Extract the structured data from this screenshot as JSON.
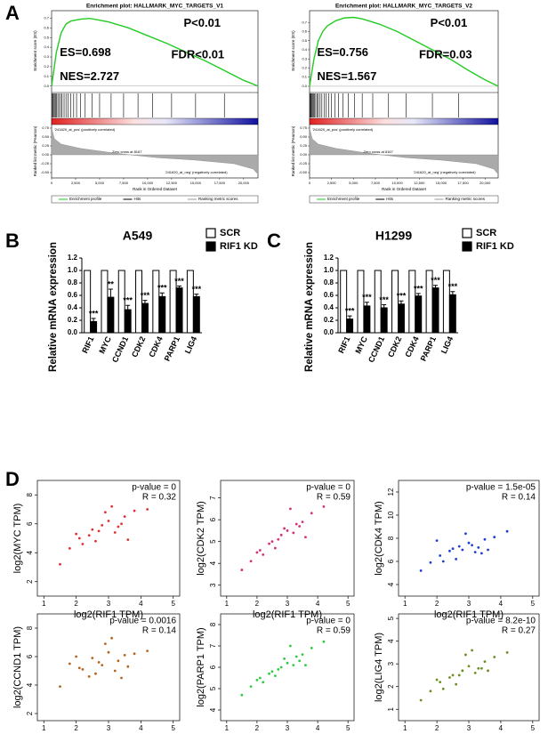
{
  "panels": [
    "A",
    "B",
    "C",
    "D"
  ],
  "chart_data": [
    {
      "type": "gsea",
      "title": "Enrichment plot: HALLMARK_MYC_TARGETS_V1",
      "ylabel": "Enrichment score (ES)",
      "metric_ylabel": "Ranked list metric (Pearson)",
      "xlabel": "Rank in Ordered Dataset",
      "annotations": [
        "P<0.01",
        "FDR<0.01",
        "ES=0.698",
        "NES=2.727"
      ],
      "x": [
        0,
        500,
        1000,
        1500,
        2000,
        3000,
        4000,
        5000,
        6000,
        8000,
        10000,
        12000,
        14000,
        16000,
        18000,
        20000,
        21500
      ],
      "values": [
        0,
        0.35,
        0.55,
        0.64,
        0.67,
        0.69,
        0.698,
        0.68,
        0.66,
        0.6,
        0.52,
        0.44,
        0.35,
        0.26,
        0.16,
        0.06,
        0
      ],
      "color": "#22cc22",
      "ylim": [
        -0.03,
        0.75
      ],
      "yticks": [
        {
          "value": 0,
          "label": "0.0"
        },
        0.1,
        0.2,
        0.3,
        0.4,
        0.5,
        0.6,
        0.7
      ],
      "xlim": [
        0,
        21500
      ],
      "xticks": [
        0,
        {
          "value": 2500,
          "label": "2,500"
        },
        {
          "value": 5000,
          "label": "5,000"
        },
        {
          "value": 7500,
          "label": "7,500"
        },
        {
          "value": 10000,
          "label": "10,000"
        },
        {
          "value": 12500,
          "label": "12,500"
        },
        {
          "value": 15000,
          "label": "15,000"
        },
        {
          "value": 17500,
          "label": "17,500"
        },
        {
          "value": 20000,
          "label": "20,000"
        }
      ],
      "hits": [
        50,
        120,
        200,
        300,
        400,
        520,
        650,
        800,
        950,
        1100,
        1300,
        1500,
        1700,
        2000,
        2300,
        2600,
        3000,
        3500,
        4200,
        5000,
        6200,
        7500,
        9000,
        10500,
        12500,
        15000,
        18000
      ],
      "metric_x": [
        0,
        300,
        1000,
        3000,
        6000,
        8167,
        11000,
        15000,
        19000,
        21000,
        21500
      ],
      "metric_values": [
        0.75,
        0.45,
        0.3,
        0.18,
        0.07,
        0,
        -0.08,
        -0.15,
        -0.25,
        -0.4,
        -0.55
      ],
      "metric_ylim": [
        -0.6,
        0.8
      ],
      "metric_yticks": [
        0.75,
        {
          "value": 0.5,
          "label": "0.50"
        },
        {
          "value": 0.25,
          "label": "0.25"
        },
        {
          "value": 0,
          "label": "0.00"
        },
        -0.25,
        {
          "value": -0.5,
          "label": "-0.50"
        }
      ],
      "metric_labels": [
        "'241620_at_pos' (positively correlated)",
        "Zero cross at 8167",
        "'241620_at_neg' (negatively correlated)"
      ],
      "legend": [
        "Enrichment profile",
        "Hits",
        "Ranking metric scores"
      ]
    },
    {
      "type": "gsea",
      "title": "Enrichment plot: HALLMARK_MYC_TARGETS_V2",
      "ylabel": "Enrichment score (ES)",
      "metric_ylabel": "Ranked list metric (Pearson)",
      "xlabel": "Rank in Ordered Dataset",
      "annotations": [
        "P<0.01",
        "FDR=0.03",
        "ES=0.756",
        "NES=1.567"
      ],
      "x": [
        0,
        500,
        1000,
        1500,
        2000,
        3000,
        4000,
        5000,
        6000,
        8000,
        10000,
        12000,
        14000,
        16000,
        18000,
        20000,
        21500
      ],
      "values": [
        0,
        0.3,
        0.5,
        0.6,
        0.66,
        0.72,
        0.75,
        0.756,
        0.74,
        0.68,
        0.6,
        0.5,
        0.4,
        0.3,
        0.18,
        0.07,
        0
      ],
      "color": "#22cc22",
      "ylim": [
        -0.03,
        0.8
      ],
      "yticks": [
        {
          "value": 0,
          "label": "0.0"
        },
        0.1,
        0.2,
        0.3,
        0.4,
        0.5,
        0.6,
        0.7
      ],
      "xlim": [
        0,
        21500
      ],
      "xticks": [
        0,
        {
          "value": 2500,
          "label": "2,500"
        },
        {
          "value": 5000,
          "label": "5,000"
        },
        {
          "value": 7500,
          "label": "7,500"
        },
        {
          "value": 10000,
          "label": "10,000"
        },
        {
          "value": 12500,
          "label": "12,500"
        },
        {
          "value": 15000,
          "label": "15,000"
        },
        {
          "value": 17500,
          "label": "17,500"
        },
        {
          "value": 20000,
          "label": "20,000"
        }
      ],
      "hits": [
        40,
        100,
        180,
        260,
        350,
        450,
        560,
        700,
        850,
        1000,
        1200,
        1400,
        1650,
        1900,
        2200,
        2500,
        2900,
        3300,
        3800,
        4400,
        5100,
        6000,
        7200,
        9000,
        11000,
        14000,
        17000
      ],
      "metric_x": [
        0,
        300,
        1000,
        3000,
        6000,
        8167,
        11000,
        15000,
        19000,
        21000,
        21500
      ],
      "metric_values": [
        0.75,
        0.45,
        0.3,
        0.18,
        0.07,
        0,
        -0.08,
        -0.15,
        -0.25,
        -0.4,
        -0.55
      ],
      "metric_ylim": [
        -0.6,
        0.8
      ],
      "metric_yticks": [
        0.75,
        {
          "value": 0.5,
          "label": "0.50"
        },
        {
          "value": 0.25,
          "label": "0.25"
        },
        {
          "value": 0,
          "label": "0.00"
        },
        -0.25,
        {
          "value": -0.5,
          "label": "-0.50"
        }
      ],
      "metric_labels": [
        "'241620_at_pos' (positively correlated)",
        "Zero cross at 8167",
        "'241620_at_neg' (negatively correlated)"
      ],
      "legend": [
        "Enrichment profile",
        "Hits",
        "Ranking metric scores"
      ]
    },
    {
      "type": "bar",
      "title": "A549",
      "ylabel": "Relative mRNA expression",
      "categories": [
        "RIF1",
        "MYC",
        "CCND1",
        "CDK2",
        "CDK4",
        "PARP1",
        "LIG4"
      ],
      "series": [
        {
          "name": "SCR",
          "color": "#ffffff",
          "values": [
            1,
            1,
            1,
            1,
            1,
            1,
            1
          ]
        },
        {
          "name": "RIF1 KD",
          "color": "#000000",
          "values": [
            0.18,
            0.57,
            0.37,
            0.47,
            0.58,
            0.72,
            0.58
          ],
          "errors": [
            0.05,
            0.13,
            0.07,
            0.05,
            0.06,
            0.03,
            0.04
          ],
          "significance": [
            "***",
            "**",
            "***",
            "***",
            "***",
            "***",
            "***"
          ]
        }
      ],
      "ylim": [
        0,
        1.2
      ],
      "yticks": [
        {
          "value": 0,
          "label": "0.0"
        },
        0.2,
        0.4,
        0.6,
        0.8,
        {
          "value": 1,
          "label": "1.0"
        },
        1.2
      ]
    },
    {
      "type": "bar",
      "title": "H1299",
      "ylabel": "Relative mRNA expression",
      "categories": [
        "RIF1",
        "MYC",
        "CCND1",
        "CDK2",
        "CDK4",
        "PARP1",
        "LIG4"
      ],
      "series": [
        {
          "name": "SCR",
          "color": "#ffffff",
          "values": [
            1,
            1,
            1,
            1,
            1,
            1,
            1
          ]
        },
        {
          "name": "RIF1 KD",
          "color": "#000000",
          "values": [
            0.22,
            0.43,
            0.4,
            0.46,
            0.59,
            0.72,
            0.61
          ],
          "errors": [
            0.05,
            0.06,
            0.05,
            0.05,
            0.04,
            0.04,
            0.05
          ],
          "significance": [
            "***",
            "***",
            "***",
            "***",
            "***",
            "***",
            "***"
          ]
        }
      ],
      "ylim": [
        0,
        1.2
      ],
      "yticks": [
        {
          "value": 0,
          "label": "0.0"
        },
        0.2,
        0.4,
        0.6,
        0.8,
        {
          "value": 1,
          "label": "1.0"
        },
        1.2
      ]
    },
    {
      "type": "scatter",
      "xlabel": "log2(RIF1 TPM)",
      "ylabel": "log2(MYC TPM)",
      "annotations": [
        "p-value = 0",
        "R = 0.32"
      ],
      "color": "#e03030",
      "x": [
        2.1,
        2.5,
        2.8,
        3.0,
        3.2,
        2.6,
        3.5,
        1.8,
        2.9,
        3.3,
        2.4,
        3.8,
        2.2,
        3.1,
        2.7,
        4.2,
        1.5,
        3.4,
        2.0,
        3.6
      ],
      "values": [
        5.0,
        5.6,
        5.9,
        6.2,
        5.4,
        4.8,
        6.5,
        4.3,
        6.8,
        5.8,
        5.2,
        6.9,
        4.6,
        7.2,
        5.5,
        7.0,
        3.2,
        6.0,
        5.3,
        4.9
      ],
      "xlim": [
        0.8,
        5.2
      ],
      "xticks": [
        1,
        2,
        3,
        4,
        5
      ],
      "ylim": [
        1,
        9
      ],
      "yticks": [
        2,
        4,
        6,
        8
      ]
    },
    {
      "type": "scatter",
      "xlabel": "log2(RIF1 TPM)",
      "ylabel": "log2(CDK2 TPM)",
      "annotations": [
        "p-value = 0",
        "R = 0.59"
      ],
      "color": "#d6307a",
      "x": [
        2.1,
        2.5,
        2.8,
        3.0,
        3.2,
        2.6,
        3.5,
        1.8,
        2.9,
        3.3,
        2.4,
        3.8,
        2.2,
        3.1,
        2.7,
        4.2,
        1.5,
        3.4,
        2.0,
        3.6
      ],
      "values": [
        4.6,
        5.0,
        5.3,
        5.5,
        5.4,
        4.7,
        5.9,
        4.1,
        5.6,
        5.8,
        4.9,
        6.3,
        4.4,
        6.5,
        5.1,
        6.6,
        3.7,
        5.7,
        4.5,
        5.2
      ],
      "xlim": [
        0.8,
        5.2
      ],
      "xticks": [
        1,
        2,
        3,
        4,
        5
      ],
      "ylim": [
        2.5,
        7.8
      ],
      "yticks": [
        3,
        4,
        5,
        6,
        7
      ]
    },
    {
      "type": "scatter",
      "xlabel": "log2(RIF1 TPM)",
      "ylabel": "log2(CDK4 TPM)",
      "annotations": [
        "p-value = 1.5e-05",
        "R = 0.14"
      ],
      "color": "#1f3fd1",
      "x": [
        2.1,
        2.5,
        2.8,
        3.0,
        3.2,
        2.6,
        3.5,
        1.8,
        2.9,
        3.3,
        2.4,
        3.8,
        2.2,
        3.1,
        2.7,
        4.2,
        1.5,
        3.4,
        2.0,
        3.6
      ],
      "values": [
        6.5,
        7.1,
        7.0,
        7.6,
        6.8,
        6.2,
        7.9,
        5.9,
        8.4,
        7.2,
        6.9,
        8.1,
        6.0,
        7.4,
        7.3,
        8.6,
        5.2,
        6.7,
        7.8,
        7.0
      ],
      "xlim": [
        0.8,
        5.2
      ],
      "xticks": [
        1,
        2,
        3,
        4,
        5
      ],
      "ylim": [
        3,
        13
      ],
      "yticks": [
        4,
        6,
        8,
        10,
        12
      ]
    },
    {
      "type": "scatter",
      "xlabel": "log2(RIF1 TPM)",
      "ylabel": "log2(CCND1 TPM)",
      "annotations": [
        "p-value = 0.0016",
        "R = 0.14"
      ],
      "color": "#b5651d",
      "x": [
        2.1,
        2.5,
        2.8,
        3.0,
        3.2,
        2.6,
        3.5,
        1.8,
        2.9,
        3.3,
        2.4,
        3.8,
        2.2,
        3.1,
        2.7,
        4.2,
        1.5,
        3.4,
        2.0,
        3.6
      ],
      "values": [
        5.2,
        5.9,
        5.4,
        6.3,
        5.0,
        4.8,
        6.1,
        5.5,
        6.9,
        5.7,
        4.6,
        6.2,
        5.1,
        7.3,
        5.6,
        6.4,
        3.9,
        4.5,
        6.0,
        5.3
      ],
      "xlim": [
        0.8,
        5.2
      ],
      "xticks": [
        1,
        2,
        3,
        4,
        5
      ],
      "ylim": [
        1.5,
        9
      ],
      "yticks": [
        2,
        4,
        6,
        8
      ]
    },
    {
      "type": "scatter",
      "xlabel": "log2(RIF1 TPM)",
      "ylabel": "log2(PARP1 TPM)",
      "annotations": [
        "p-value = 0",
        "R = 0.59"
      ],
      "color": "#2ecc40",
      "x": [
        2.1,
        2.5,
        2.8,
        3.0,
        3.2,
        2.6,
        3.5,
        1.8,
        2.9,
        3.3,
        2.4,
        3.8,
        2.2,
        3.1,
        2.7,
        4.2,
        1.5,
        3.4,
        2.0,
        3.6
      ],
      "values": [
        5.5,
        5.8,
        6.0,
        6.2,
        6.1,
        5.6,
        6.6,
        5.1,
        6.4,
        6.5,
        5.7,
        6.9,
        5.3,
        7.0,
        5.9,
        7.2,
        4.7,
        6.3,
        5.4,
        6.1
      ],
      "xlim": [
        0.8,
        5.2
      ],
      "xticks": [
        1,
        2,
        3,
        4,
        5
      ],
      "ylim": [
        3.5,
        8.5
      ],
      "yticks": [
        4,
        5,
        6,
        7,
        8
      ]
    },
    {
      "type": "scatter",
      "xlabel": "log2(RIF1 TPM)",
      "ylabel": "log2(LIG4 TPM)",
      "annotations": [
        "p-value = 8.2e-10",
        "R = 0.27"
      ],
      "color": "#6b8e23",
      "x": [
        2.1,
        2.5,
        2.8,
        3.0,
        3.2,
        2.6,
        3.5,
        1.8,
        2.9,
        3.3,
        2.4,
        3.8,
        2.2,
        3.1,
        2.7,
        4.2,
        1.5,
        3.4,
        2.0,
        3.6
      ],
      "values": [
        2.2,
        2.5,
        2.7,
        2.9,
        2.6,
        2.1,
        3.1,
        1.8,
        3.4,
        2.8,
        2.4,
        3.3,
        1.9,
        3.6,
        2.5,
        3.5,
        1.4,
        2.8,
        2.3,
        2.7
      ],
      "xlim": [
        0.8,
        5.2
      ],
      "xticks": [
        1,
        2,
        3,
        4,
        5
      ],
      "ylim": [
        0.5,
        5.2
      ],
      "yticks": [
        1,
        2,
        3,
        4,
        5
      ]
    }
  ]
}
